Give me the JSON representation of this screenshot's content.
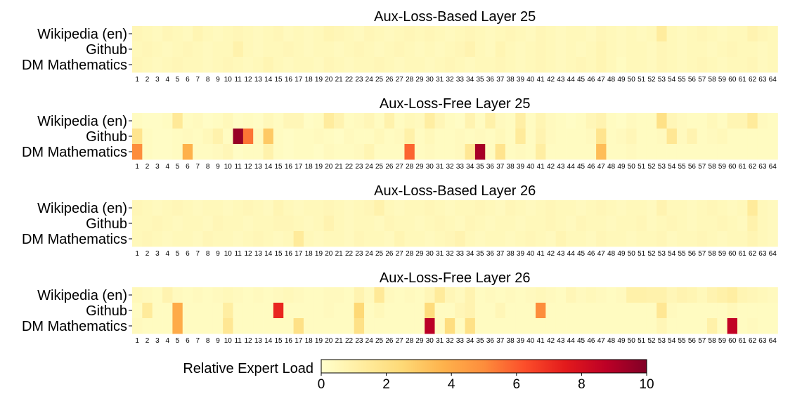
{
  "chart_data": [
    {
      "type": "heatmap",
      "title": "Aux-Loss-Based Layer 25",
      "rows": [
        "Wikipedia (en)",
        "Github",
        "DM Mathematics"
      ],
      "columns": [
        "1",
        "2",
        "3",
        "4",
        "5",
        "6",
        "7",
        "8",
        "9",
        "10",
        "11",
        "12",
        "13",
        "14",
        "15",
        "16",
        "17",
        "18",
        "19",
        "20",
        "21",
        "22",
        "23",
        "24",
        "25",
        "26",
        "27",
        "28",
        "29",
        "30",
        "31",
        "32",
        "33",
        "34",
        "35",
        "36",
        "37",
        "38",
        "39",
        "40",
        "41",
        "42",
        "43",
        "44",
        "45",
        "46",
        "47",
        "48",
        "49",
        "50",
        "51",
        "52",
        "53",
        "54",
        "55",
        "56",
        "57",
        "58",
        "59",
        "60",
        "61",
        "62",
        "63",
        "64"
      ],
      "values": [
        [
          0.6,
          0.5,
          0.4,
          0.6,
          0.5,
          0.4,
          0.7,
          0.5,
          0.4,
          0.5,
          0.6,
          0.5,
          0.4,
          0.5,
          0.6,
          0.4,
          0.5,
          0.4,
          0.5,
          0.7,
          0.6,
          0.5,
          0.4,
          0.6,
          0.5,
          0.4,
          0.5,
          0.6,
          0.5,
          0.6,
          0.5,
          0.4,
          0.5,
          0.6,
          0.5,
          0.4,
          0.5,
          0.6,
          0.5,
          0.4,
          0.6,
          0.5,
          0.4,
          0.5,
          0.5,
          0.4,
          0.6,
          0.5,
          0.4,
          0.5,
          0.4,
          0.5,
          1.3,
          0.5,
          0.4,
          0.5,
          0.6,
          0.5,
          0.4,
          0.5,
          0.5,
          0.8,
          0.6,
          0.5
        ],
        [
          0.5,
          0.6,
          0.5,
          0.4,
          0.5,
          0.6,
          0.5,
          0.4,
          0.5,
          0.5,
          0.9,
          0.5,
          0.4,
          0.5,
          0.5,
          0.6,
          0.5,
          0.4,
          0.5,
          0.5,
          0.4,
          0.5,
          0.6,
          0.5,
          0.4,
          0.5,
          0.6,
          0.5,
          0.4,
          0.5,
          0.4,
          0.5,
          0.6,
          0.8,
          0.5,
          0.4,
          0.7,
          0.5,
          0.4,
          0.5,
          0.6,
          0.5,
          0.4,
          0.5,
          0.4,
          0.5,
          0.7,
          0.5,
          0.4,
          0.5,
          0.5,
          0.4,
          0.6,
          0.5,
          0.4,
          0.5,
          0.5,
          0.4,
          0.5,
          0.6,
          0.5,
          0.5,
          0.4,
          0.5
        ],
        [
          0.6,
          0.5,
          0.4,
          0.5,
          0.6,
          0.5,
          0.5,
          0.4,
          0.5,
          0.6,
          0.5,
          0.4,
          0.5,
          0.7,
          0.5,
          0.4,
          0.5,
          0.5,
          0.4,
          0.6,
          0.5,
          0.4,
          0.5,
          0.5,
          0.6,
          0.5,
          0.4,
          0.5,
          0.5,
          0.4,
          0.5,
          0.6,
          0.5,
          0.4,
          0.5,
          0.5,
          0.6,
          0.5,
          0.4,
          0.5,
          0.6,
          0.5,
          0.4,
          0.5,
          0.6,
          0.5,
          0.7,
          0.5,
          0.3,
          0.5,
          0.5,
          0.4,
          0.6,
          0.5,
          0.4,
          0.5,
          0.6,
          0.5,
          0.4,
          0.5,
          0.5,
          0.6,
          0.4,
          0.5
        ]
      ]
    },
    {
      "type": "heatmap",
      "title": "Aux-Loss-Free Layer 25",
      "rows": [
        "Wikipedia (en)",
        "Github",
        "DM Mathematics"
      ],
      "columns": [
        "1",
        "2",
        "3",
        "4",
        "5",
        "6",
        "7",
        "8",
        "9",
        "10",
        "11",
        "12",
        "13",
        "14",
        "15",
        "16",
        "17",
        "18",
        "19",
        "20",
        "21",
        "22",
        "23",
        "24",
        "25",
        "26",
        "27",
        "28",
        "29",
        "30",
        "31",
        "32",
        "33",
        "34",
        "35",
        "36",
        "37",
        "38",
        "39",
        "40",
        "41",
        "42",
        "43",
        "44",
        "45",
        "46",
        "47",
        "48",
        "49",
        "50",
        "51",
        "52",
        "53",
        "54",
        "55",
        "56",
        "57",
        "58",
        "59",
        "60",
        "61",
        "62",
        "63",
        "64"
      ],
      "values": [
        [
          0.3,
          0.2,
          0.2,
          0.3,
          1.5,
          0.3,
          0.4,
          0.2,
          0.3,
          0.5,
          0.2,
          0.3,
          0.2,
          0.5,
          0.3,
          0.6,
          0.6,
          0.2,
          0.3,
          1.3,
          0.8,
          0.3,
          0.4,
          0.6,
          0.3,
          0.9,
          0.3,
          0.5,
          0.4,
          1.2,
          0.6,
          0.3,
          0.2,
          0.8,
          0.3,
          1.0,
          0.4,
          0.3,
          1.1,
          0.3,
          0.7,
          0.4,
          0.3,
          0.2,
          0.3,
          0.6,
          0.8,
          0.3,
          0.2,
          0.4,
          0.3,
          0.3,
          2.0,
          0.6,
          0.4,
          0.3,
          0.3,
          0.5,
          0.3,
          0.7,
          0.7,
          1.4,
          0.4,
          0.3
        ],
        [
          1.8,
          0.3,
          0.2,
          0.2,
          0.3,
          0.4,
          0.3,
          0.5,
          0.9,
          0.3,
          9.5,
          5.5,
          0.4,
          3.0,
          0.3,
          0.2,
          0.3,
          0.3,
          0.4,
          0.3,
          0.2,
          0.4,
          0.3,
          0.3,
          0.5,
          0.3,
          0.4,
          1.0,
          0.3,
          0.5,
          0.3,
          0.3,
          0.4,
          0.3,
          0.4,
          0.3,
          0.5,
          0.3,
          1.4,
          0.3,
          0.8,
          0.4,
          0.3,
          0.3,
          0.3,
          0.4,
          1.8,
          0.3,
          0.4,
          0.6,
          0.3,
          0.3,
          0.4,
          1.6,
          0.4,
          0.8,
          0.3,
          0.4,
          0.5,
          0.3,
          0.3,
          0.3,
          0.3,
          0.3
        ],
        [
          5.0,
          0.3,
          0.2,
          0.2,
          0.3,
          3.8,
          0.3,
          0.3,
          0.4,
          0.6,
          0.2,
          0.3,
          0.3,
          0.9,
          0.3,
          0.2,
          0.3,
          0.3,
          0.2,
          0.4,
          0.3,
          0.3,
          0.4,
          0.7,
          0.3,
          0.3,
          0.3,
          5.8,
          0.3,
          0.4,
          0.3,
          0.3,
          0.4,
          1.6,
          9.2,
          0.3,
          1.8,
          0.3,
          0.4,
          0.3,
          1.2,
          0.3,
          0.3,
          0.3,
          0.3,
          0.3,
          3.4,
          0.3,
          0.3,
          0.4,
          0.3,
          0.3,
          0.3,
          0.3,
          0.3,
          0.3,
          0.3,
          0.3,
          0.3,
          0.3,
          0.3,
          0.3,
          0.3,
          0.3
        ]
      ]
    },
    {
      "type": "heatmap",
      "title": "Aux-Loss-Based Layer 26",
      "rows": [
        "Wikipedia (en)",
        "Github",
        "DM Mathematics"
      ],
      "columns": [
        "1",
        "2",
        "3",
        "4",
        "5",
        "6",
        "7",
        "8",
        "9",
        "10",
        "11",
        "12",
        "13",
        "14",
        "15",
        "16",
        "17",
        "18",
        "19",
        "20",
        "21",
        "22",
        "23",
        "24",
        "25",
        "26",
        "27",
        "28",
        "29",
        "30",
        "31",
        "32",
        "33",
        "34",
        "35",
        "36",
        "37",
        "38",
        "39",
        "40",
        "41",
        "42",
        "43",
        "44",
        "45",
        "46",
        "47",
        "48",
        "49",
        "50",
        "51",
        "52",
        "53",
        "54",
        "55",
        "56",
        "57",
        "58",
        "59",
        "60",
        "61",
        "62",
        "63",
        "64"
      ],
      "values": [
        [
          0.6,
          0.5,
          0.4,
          0.5,
          0.6,
          0.5,
          0.4,
          0.5,
          0.5,
          0.4,
          0.5,
          0.6,
          0.5,
          0.4,
          0.7,
          0.5,
          0.4,
          0.5,
          0.5,
          0.6,
          0.5,
          0.4,
          0.5,
          0.6,
          0.9,
          0.5,
          0.4,
          0.5,
          0.5,
          0.6,
          0.5,
          0.4,
          0.5,
          0.5,
          0.6,
          0.5,
          0.4,
          0.6,
          0.5,
          0.4,
          0.5,
          0.6,
          0.5,
          0.5,
          0.4,
          0.5,
          0.6,
          0.5,
          0.4,
          0.5,
          0.5,
          0.4,
          0.8,
          0.5,
          0.5,
          0.4,
          0.5,
          0.6,
          0.5,
          0.4,
          0.5,
          1.4,
          0.5,
          0.4
        ],
        [
          0.5,
          0.5,
          0.6,
          0.5,
          0.4,
          0.5,
          0.5,
          0.4,
          0.6,
          0.5,
          0.5,
          0.4,
          0.5,
          0.5,
          0.6,
          0.6,
          0.5,
          0.4,
          0.5,
          0.8,
          0.5,
          0.4,
          0.5,
          0.5,
          0.4,
          0.6,
          0.5,
          0.5,
          0.4,
          0.5,
          0.6,
          0.5,
          0.4,
          0.6,
          0.5,
          0.4,
          0.5,
          0.5,
          0.4,
          0.5,
          0.5,
          0.6,
          0.5,
          0.4,
          0.6,
          0.5,
          0.5,
          0.4,
          0.5,
          0.5,
          0.6,
          0.4,
          0.5,
          0.6,
          0.5,
          0.4,
          0.5,
          0.5,
          0.6,
          0.5,
          0.4,
          0.9,
          0.5,
          0.4
        ],
        [
          0.5,
          0.6,
          0.5,
          0.4,
          0.5,
          0.5,
          0.4,
          0.6,
          0.5,
          0.5,
          0.4,
          0.5,
          0.6,
          0.5,
          0.4,
          0.5,
          1.4,
          0.5,
          0.4,
          0.5,
          0.5,
          0.4,
          0.6,
          0.5,
          0.5,
          0.4,
          0.7,
          0.5,
          0.5,
          0.4,
          0.5,
          0.6,
          0.8,
          0.5,
          0.4,
          0.5,
          0.5,
          0.4,
          0.5,
          0.6,
          0.5,
          0.4,
          0.7,
          0.5,
          0.5,
          0.4,
          0.6,
          0.5,
          0.5,
          0.4,
          0.5,
          0.5,
          0.6,
          0.4,
          0.5,
          0.5,
          0.6,
          0.5,
          0.4,
          0.5,
          0.5,
          0.7,
          0.5,
          0.4
        ]
      ]
    },
    {
      "type": "heatmap",
      "title": "Aux-Loss-Free Layer 26",
      "rows": [
        "Wikipedia (en)",
        "Github",
        "DM Mathematics"
      ],
      "columns": [
        "1",
        "2",
        "3",
        "4",
        "5",
        "6",
        "7",
        "8",
        "9",
        "10",
        "11",
        "12",
        "13",
        "14",
        "15",
        "16",
        "17",
        "18",
        "19",
        "20",
        "21",
        "22",
        "23",
        "24",
        "25",
        "26",
        "27",
        "28",
        "29",
        "30",
        "31",
        "32",
        "33",
        "34",
        "35",
        "36",
        "37",
        "38",
        "39",
        "40",
        "41",
        "42",
        "43",
        "44",
        "45",
        "46",
        "47",
        "48",
        "49",
        "50",
        "51",
        "52",
        "53",
        "54",
        "55",
        "56",
        "57",
        "58",
        "59",
        "60",
        "61",
        "62",
        "63",
        "64"
      ],
      "values": [
        [
          0.5,
          0.4,
          0.3,
          0.8,
          0.4,
          0.3,
          0.4,
          0.3,
          0.4,
          0.5,
          0.4,
          0.3,
          0.4,
          0.3,
          0.4,
          0.5,
          0.4,
          0.3,
          0.3,
          0.4,
          0.4,
          0.3,
          0.8,
          0.4,
          1.5,
          0.4,
          0.3,
          0.4,
          0.3,
          0.6,
          1.4,
          0.6,
          0.4,
          0.8,
          0.3,
          0.4,
          0.3,
          0.4,
          0.3,
          0.4,
          0.5,
          0.4,
          0.3,
          0.6,
          0.4,
          0.5,
          0.4,
          0.3,
          0.4,
          1.0,
          1.0,
          0.9,
          0.9,
          0.6,
          0.8,
          0.7,
          0.5,
          0.8,
          1.0,
          1.2,
          0.7,
          0.6,
          0.5,
          0.4
        ],
        [
          0.3,
          1.4,
          0.3,
          0.3,
          4.0,
          0.3,
          0.3,
          0.3,
          0.3,
          1.2,
          0.3,
          0.3,
          0.3,
          0.3,
          7.2,
          0.3,
          0.3,
          0.3,
          0.3,
          0.4,
          0.3,
          0.3,
          2.5,
          0.3,
          0.5,
          0.3,
          0.3,
          0.3,
          0.3,
          2.3,
          0.3,
          0.3,
          0.6,
          0.8,
          0.3,
          0.3,
          0.6,
          0.3,
          0.3,
          0.3,
          5.0,
          0.3,
          0.3,
          0.3,
          0.3,
          0.3,
          0.3,
          0.3,
          0.3,
          0.3,
          0.3,
          0.3,
          1.6,
          0.4,
          0.3,
          0.3,
          0.3,
          0.3,
          0.3,
          0.5,
          0.3,
          0.3,
          0.3,
          0.3
        ],
        [
          0.4,
          0.3,
          0.3,
          0.3,
          4.0,
          0.3,
          0.3,
          0.3,
          0.3,
          1.6,
          0.3,
          0.3,
          0.3,
          0.3,
          0.3,
          0.3,
          2.0,
          0.3,
          0.3,
          0.3,
          0.3,
          0.3,
          2.0,
          0.3,
          0.3,
          0.3,
          0.3,
          0.3,
          0.3,
          8.8,
          0.3,
          2.2,
          0.3,
          2.0,
          0.3,
          0.3,
          0.3,
          0.3,
          0.3,
          0.3,
          0.3,
          0.3,
          0.3,
          0.3,
          0.3,
          0.3,
          0.3,
          0.3,
          0.3,
          0.3,
          0.3,
          0.3,
          0.6,
          0.3,
          0.3,
          0.3,
          0.3,
          1.0,
          0.3,
          8.6,
          0.3,
          0.4,
          0.3,
          0.3
        ]
      ]
    }
  ],
  "colorbar": {
    "label": "Relative Expert Load",
    "min": 0,
    "max": 10,
    "ticks": [
      "0",
      "2",
      "4",
      "6",
      "8",
      "10"
    ],
    "colormap": "YlOrRd",
    "stops": [
      "#ffffcc",
      "#ffeda0",
      "#fed976",
      "#feb24c",
      "#fd8d3c",
      "#fc4e2a",
      "#e31a1c",
      "#bd0026",
      "#800026"
    ]
  }
}
